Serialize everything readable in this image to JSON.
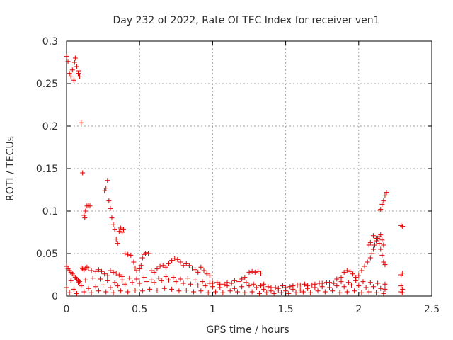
{
  "chart_data": {
    "type": "scatter",
    "title": "Day 232 of 2022, Rate Of TEC Index for receiver ven1",
    "xlabel": "GPS time / hours",
    "ylabel": "ROTI / TECUs",
    "xlim": [
      0,
      2.5
    ],
    "ylim": [
      0,
      0.3
    ],
    "xticks": [
      "0",
      "0.5",
      "1",
      "1.5",
      "2",
      "2.5"
    ],
    "yticks": [
      "0",
      "0.05",
      "0.1",
      "0.15",
      "0.2",
      "0.25",
      "0.3"
    ],
    "grid": true,
    "marker": "plus",
    "color": "#e00000",
    "series": [
      {
        "points": [
          [
            0.0,
            0.282
          ],
          [
            0.01,
            0.276
          ],
          [
            0.02,
            0.262
          ],
          [
            0.03,
            0.258
          ],
          [
            0.04,
            0.266
          ],
          [
            0.05,
            0.254
          ],
          [
            0.055,
            0.275
          ],
          [
            0.06,
            0.28
          ],
          [
            0.07,
            0.27
          ],
          [
            0.08,
            0.262
          ],
          [
            0.085,
            0.265
          ],
          [
            0.09,
            0.258
          ],
          [
            0.1,
            0.204
          ],
          [
            0.11,
            0.145
          ],
          [
            0.12,
            0.095
          ],
          [
            0.125,
            0.092
          ],
          [
            0.13,
            0.1
          ],
          [
            0.14,
            0.106
          ],
          [
            0.15,
            0.107
          ],
          [
            0.16,
            0.106
          ],
          [
            0.26,
            0.124
          ],
          [
            0.27,
            0.127
          ],
          [
            0.28,
            0.136
          ],
          [
            0.29,
            0.112
          ],
          [
            0.3,
            0.103
          ],
          [
            0.31,
            0.092
          ],
          [
            0.32,
            0.084
          ],
          [
            0.33,
            0.078
          ],
          [
            0.34,
            0.067
          ],
          [
            0.35,
            0.062
          ],
          [
            0.36,
            0.076
          ],
          [
            0.37,
            0.08
          ],
          [
            0.38,
            0.075
          ],
          [
            0.39,
            0.078
          ],
          [
            0.0,
            0.035
          ],
          [
            0.01,
            0.032
          ],
          [
            0.02,
            0.03
          ],
          [
            0.03,
            0.028
          ],
          [
            0.04,
            0.026
          ],
          [
            0.05,
            0.024
          ],
          [
            0.06,
            0.022
          ],
          [
            0.07,
            0.02
          ],
          [
            0.08,
            0.018
          ],
          [
            0.09,
            0.017
          ],
          [
            0.1,
            0.033
          ],
          [
            0.11,
            0.032
          ],
          [
            0.12,
            0.031
          ],
          [
            0.13,
            0.033
          ],
          [
            0.14,
            0.034
          ],
          [
            0.15,
            0.033
          ],
          [
            0.17,
            0.03
          ],
          [
            0.2,
            0.029
          ],
          [
            0.22,
            0.031
          ],
          [
            0.24,
            0.029
          ],
          [
            0.26,
            0.026
          ],
          [
            0.28,
            0.024
          ],
          [
            0.3,
            0.03
          ],
          [
            0.32,
            0.028
          ],
          [
            0.34,
            0.027
          ],
          [
            0.36,
            0.025
          ],
          [
            0.38,
            0.023
          ],
          [
            0.4,
            0.05
          ],
          [
            0.42,
            0.049
          ],
          [
            0.44,
            0.048
          ],
          [
            0.46,
            0.04
          ],
          [
            0.47,
            0.033
          ],
          [
            0.48,
            0.03
          ],
          [
            0.5,
            0.032
          ],
          [
            0.51,
            0.036
          ],
          [
            0.52,
            0.045
          ],
          [
            0.53,
            0.049
          ],
          [
            0.54,
            0.05
          ],
          [
            0.55,
            0.051
          ],
          [
            0.56,
            0.05
          ],
          [
            0.58,
            0.03
          ],
          [
            0.6,
            0.028
          ],
          [
            0.62,
            0.032
          ],
          [
            0.64,
            0.035
          ],
          [
            0.66,
            0.036
          ],
          [
            0.68,
            0.034
          ],
          [
            0.7,
            0.038
          ],
          [
            0.72,
            0.042
          ],
          [
            0.74,
            0.044
          ],
          [
            0.76,
            0.043
          ],
          [
            0.78,
            0.04
          ],
          [
            0.8,
            0.036
          ],
          [
            0.82,
            0.038
          ],
          [
            0.84,
            0.036
          ],
          [
            0.86,
            0.033
          ],
          [
            0.88,
            0.031
          ],
          [
            0.9,
            0.028
          ],
          [
            0.92,
            0.034
          ],
          [
            0.94,
            0.03
          ],
          [
            0.96,
            0.026
          ],
          [
            0.98,
            0.024
          ],
          [
            1.0,
            0.015
          ],
          [
            1.05,
            0.014
          ],
          [
            1.1,
            0.016
          ],
          [
            1.15,
            0.018
          ],
          [
            1.2,
            0.02
          ],
          [
            1.22,
            0.022
          ],
          [
            1.25,
            0.028
          ],
          [
            1.27,
            0.029
          ],
          [
            1.29,
            0.028
          ],
          [
            1.31,
            0.029
          ],
          [
            1.33,
            0.027
          ],
          [
            1.35,
            0.014
          ],
          [
            1.4,
            0.01
          ],
          [
            1.45,
            0.009
          ],
          [
            1.5,
            0.01
          ],
          [
            1.55,
            0.012
          ],
          [
            1.6,
            0.013
          ],
          [
            1.65,
            0.012
          ],
          [
            1.7,
            0.014
          ],
          [
            1.75,
            0.015
          ],
          [
            1.8,
            0.016
          ],
          [
            1.85,
            0.02
          ],
          [
            1.88,
            0.022
          ],
          [
            1.9,
            0.028
          ],
          [
            1.92,
            0.03
          ],
          [
            1.94,
            0.029
          ],
          [
            1.96,
            0.026
          ],
          [
            1.98,
            0.022
          ],
          [
            2.0,
            0.024
          ],
          [
            2.02,
            0.03
          ],
          [
            2.04,
            0.035
          ],
          [
            2.06,
            0.04
          ],
          [
            2.08,
            0.045
          ],
          [
            2.09,
            0.05
          ],
          [
            2.1,
            0.055
          ],
          [
            2.11,
            0.06
          ],
          [
            2.12,
            0.065
          ],
          [
            2.13,
            0.068
          ],
          [
            2.14,
            0.07
          ],
          [
            2.15,
            0.072
          ],
          [
            2.16,
            0.066
          ],
          [
            2.17,
            0.06
          ],
          [
            2.07,
            0.06
          ],
          [
            2.08,
            0.063
          ],
          [
            2.1,
            0.071
          ],
          [
            2.12,
            0.068
          ],
          [
            2.14,
            0.062
          ],
          [
            2.15,
            0.055
          ],
          [
            2.16,
            0.048
          ],
          [
            2.17,
            0.04
          ],
          [
            2.18,
            0.037
          ],
          [
            2.14,
            0.101
          ],
          [
            2.15,
            0.102
          ],
          [
            2.16,
            0.108
          ],
          [
            2.17,
            0.112
          ],
          [
            2.18,
            0.118
          ],
          [
            2.19,
            0.122
          ],
          [
            2.29,
            0.083
          ],
          [
            2.3,
            0.082
          ],
          [
            2.29,
            0.025
          ],
          [
            2.3,
            0.027
          ],
          [
            2.29,
            0.012
          ],
          [
            2.3,
            0.008
          ],
          [
            2.29,
            0.005
          ],
          [
            2.3,
            0.004
          ],
          [
            0.0,
            0.01
          ],
          [
            0.05,
            0.008
          ],
          [
            0.1,
            0.012
          ],
          [
            0.15,
            0.009
          ],
          [
            0.2,
            0.011
          ],
          [
            0.25,
            0.013
          ],
          [
            0.3,
            0.01
          ],
          [
            0.35,
            0.012
          ],
          [
            0.4,
            0.014
          ],
          [
            0.45,
            0.016
          ],
          [
            0.5,
            0.015
          ],
          [
            0.55,
            0.017
          ],
          [
            0.6,
            0.016
          ],
          [
            0.65,
            0.018
          ],
          [
            0.7,
            0.019
          ],
          [
            0.75,
            0.017
          ],
          [
            0.8,
            0.015
          ],
          [
            0.85,
            0.014
          ],
          [
            0.9,
            0.013
          ],
          [
            0.95,
            0.012
          ],
          [
            1.0,
            0.011
          ],
          [
            1.05,
            0.01
          ],
          [
            1.1,
            0.012
          ],
          [
            1.15,
            0.009
          ],
          [
            1.2,
            0.011
          ],
          [
            1.25,
            0.012
          ],
          [
            1.3,
            0.01
          ],
          [
            1.35,
            0.008
          ],
          [
            1.4,
            0.006
          ],
          [
            1.45,
            0.007
          ],
          [
            1.5,
            0.006
          ],
          [
            1.55,
            0.008
          ],
          [
            1.6,
            0.007
          ],
          [
            1.65,
            0.009
          ],
          [
            1.7,
            0.01
          ],
          [
            1.75,
            0.011
          ],
          [
            1.8,
            0.01
          ],
          [
            1.85,
            0.012
          ],
          [
            1.9,
            0.011
          ],
          [
            1.95,
            0.013
          ],
          [
            2.0,
            0.012
          ],
          [
            2.05,
            0.01
          ],
          [
            2.1,
            0.011
          ],
          [
            2.15,
            0.009
          ],
          [
            2.18,
            0.008
          ],
          [
            0.02,
            0.004
          ],
          [
            0.07,
            0.003
          ],
          [
            0.12,
            0.005
          ],
          [
            0.17,
            0.004
          ],
          [
            0.22,
            0.006
          ],
          [
            0.27,
            0.005
          ],
          [
            0.32,
            0.004
          ],
          [
            0.37,
            0.006
          ],
          [
            0.42,
            0.005
          ],
          [
            0.47,
            0.007
          ],
          [
            0.52,
            0.006
          ],
          [
            0.57,
            0.008
          ],
          [
            0.62,
            0.007
          ],
          [
            0.67,
            0.009
          ],
          [
            0.72,
            0.008
          ],
          [
            0.77,
            0.006
          ],
          [
            0.82,
            0.007
          ],
          [
            0.87,
            0.005
          ],
          [
            0.92,
            0.006
          ],
          [
            0.97,
            0.004
          ],
          [
            1.02,
            0.005
          ],
          [
            1.07,
            0.004
          ],
          [
            1.12,
            0.006
          ],
          [
            1.17,
            0.005
          ],
          [
            1.22,
            0.004
          ],
          [
            1.27,
            0.005
          ],
          [
            1.32,
            0.003
          ],
          [
            1.37,
            0.004
          ],
          [
            1.42,
            0.003
          ],
          [
            1.47,
            0.004
          ],
          [
            1.52,
            0.003
          ],
          [
            1.57,
            0.004
          ],
          [
            1.62,
            0.005
          ],
          [
            1.67,
            0.004
          ],
          [
            1.72,
            0.006
          ],
          [
            1.77,
            0.005
          ],
          [
            1.82,
            0.006
          ],
          [
            1.87,
            0.004
          ],
          [
            1.92,
            0.005
          ],
          [
            1.97,
            0.006
          ],
          [
            2.02,
            0.004
          ],
          [
            2.07,
            0.005
          ],
          [
            2.12,
            0.004
          ],
          [
            2.17,
            0.003
          ],
          [
            0.03,
            0.018
          ],
          [
            0.08,
            0.016
          ],
          [
            0.13,
            0.019
          ],
          [
            0.18,
            0.021
          ],
          [
            0.23,
            0.02
          ],
          [
            0.28,
            0.018
          ],
          [
            0.33,
            0.016
          ],
          [
            0.38,
            0.019
          ],
          [
            0.43,
            0.021
          ],
          [
            0.48,
            0.02
          ],
          [
            0.53,
            0.022
          ],
          [
            0.58,
            0.019
          ],
          [
            0.63,
            0.021
          ],
          [
            0.68,
            0.023
          ],
          [
            0.73,
            0.022
          ],
          [
            0.78,
            0.02
          ],
          [
            0.83,
            0.021
          ],
          [
            0.88,
            0.019
          ],
          [
            0.93,
            0.017
          ],
          [
            0.98,
            0.015
          ],
          [
            1.03,
            0.016
          ],
          [
            1.08,
            0.014
          ],
          [
            1.13,
            0.015
          ],
          [
            1.18,
            0.017
          ],
          [
            1.23,
            0.016
          ],
          [
            1.28,
            0.014
          ],
          [
            1.33,
            0.012
          ],
          [
            1.38,
            0.011
          ],
          [
            1.43,
            0.01
          ],
          [
            1.48,
            0.012
          ],
          [
            1.53,
            0.011
          ],
          [
            1.58,
            0.013
          ],
          [
            1.63,
            0.014
          ],
          [
            1.68,
            0.013
          ],
          [
            1.73,
            0.015
          ],
          [
            1.78,
            0.016
          ],
          [
            1.83,
            0.015
          ],
          [
            1.88,
            0.017
          ],
          [
            1.93,
            0.016
          ],
          [
            1.98,
            0.018
          ],
          [
            2.03,
            0.017
          ],
          [
            2.08,
            0.016
          ],
          [
            2.13,
            0.015
          ],
          [
            2.18,
            0.014
          ]
        ]
      }
    ]
  }
}
